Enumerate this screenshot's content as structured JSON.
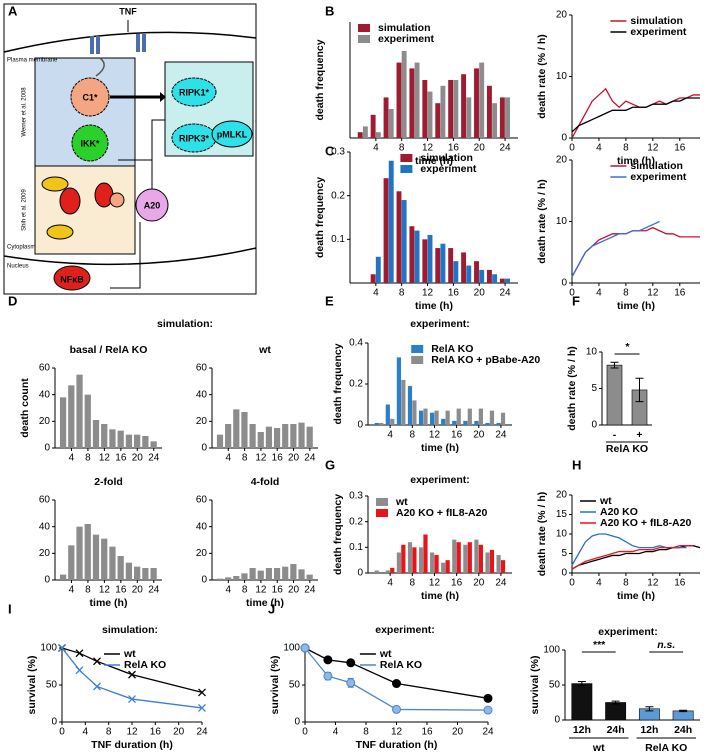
{
  "diagram": {
    "panel": "A",
    "tnf": "TNF",
    "membrane": "Plasma membrane",
    "ref1": "Werner et al. 2008",
    "ref2": "Shih et al. 2009",
    "c1": "C1*",
    "ikk": "IKK*",
    "ripk1": "RIPK1*",
    "ripk3": "RIPK3*",
    "pmlkl": "pMLKL",
    "a20": "A20",
    "cytoplasm": "Cytoplasm",
    "nucleus": "Nucleus",
    "nfkb": "NFκB"
  },
  "chart_data": [
    {
      "panel": "B",
      "type": "bar",
      "xlabel": "time (h)",
      "ylabel": "death frequency",
      "x": [
        2,
        4,
        6,
        8,
        10,
        12,
        14,
        16,
        18,
        20,
        22,
        24
      ],
      "xlim": [
        0,
        26
      ],
      "xticks": [
        4,
        8,
        12,
        16,
        20,
        24
      ],
      "ylim": [
        0,
        0.2
      ],
      "legend": "upper left",
      "series": [
        {
          "name": "simulation",
          "color": "#9e1b32",
          "values": [
            0.01,
            0.04,
            0.07,
            0.13,
            0.12,
            0.1,
            0.06,
            0.1,
            0.11,
            0.12,
            0.09,
            0.07
          ]
        },
        {
          "name": "experiment",
          "color": "#8c8c8c",
          "values": [
            0.02,
            0.01,
            0.05,
            0.15,
            0.13,
            0.08,
            0.09,
            0.1,
            0.07,
            0.13,
            0.06,
            0.07
          ]
        }
      ]
    },
    {
      "type": "line",
      "xlabel": "time (h)",
      "ylabel": "death rate (% / h)",
      "x": [
        0,
        1,
        2,
        3,
        4,
        5,
        6,
        7,
        8,
        9,
        10,
        11,
        12,
        13,
        14,
        15,
        16,
        17,
        18,
        19
      ],
      "xlim": [
        0,
        19
      ],
      "xticks": [
        0,
        4,
        8,
        12,
        16
      ],
      "ylim": [
        0,
        20
      ],
      "yticks": [
        0,
        10,
        20
      ],
      "legend": "upper right",
      "series": [
        {
          "name": "simulation",
          "color": "#c8102e",
          "values": [
            0,
            2,
            4,
            6,
            7,
            8,
            6,
            5,
            6,
            5.5,
            5,
            5,
            5.5,
            6,
            5.5,
            6,
            6.5,
            6.5,
            7,
            7
          ]
        },
        {
          "name": "experiment",
          "color": "#000000",
          "values": [
            1,
            2,
            2.5,
            3,
            3.5,
            4,
            4.5,
            4.5,
            4.5,
            5,
            5,
            5,
            5.5,
            5.5,
            5.5,
            6,
            6,
            6.5,
            6.5,
            6.5
          ]
        }
      ]
    },
    {
      "panel": "C",
      "type": "bar",
      "xlabel": "time (h)",
      "ylabel": "death frequency",
      "x": [
        2,
        4,
        6,
        8,
        10,
        12,
        14,
        16,
        18,
        20,
        22,
        24
      ],
      "xlim": [
        0,
        26
      ],
      "xticks": [
        4,
        8,
        12,
        16,
        20,
        24
      ],
      "ylim": [
        0,
        0.3
      ],
      "yticks": [
        0.1,
        0.2,
        0.3
      ],
      "legend": "upper right",
      "series": [
        {
          "name": "simulation",
          "color": "#9e1b32",
          "values": [
            0,
            0.02,
            0.24,
            0.21,
            0.13,
            0.1,
            0.08,
            0.08,
            0.07,
            0.05,
            0.03,
            0.01
          ]
        },
        {
          "name": "experiment",
          "color": "#1f74c4",
          "values": [
            0,
            0.06,
            0.28,
            0.19,
            0.12,
            0.11,
            0.09,
            0.05,
            0.04,
            0.03,
            0.02,
            0.01
          ]
        }
      ]
    },
    {
      "type": "line",
      "xlabel": "time (h)",
      "ylabel": "death rate (% / h)",
      "x": [
        0,
        1,
        2,
        3,
        4,
        5,
        6,
        7,
        8,
        9,
        10,
        11,
        12,
        13,
        14,
        15,
        16,
        17,
        18,
        19
      ],
      "xlim": [
        0,
        19
      ],
      "xticks": [
        0,
        4,
        8,
        12,
        16
      ],
      "ylim": [
        0,
        20
      ],
      "yticks": [
        0,
        10,
        20
      ],
      "legend": "upper right",
      "series": [
        {
          "name": "simulation",
          "color": "#c8102e",
          "values": [
            1,
            3,
            5,
            6,
            7,
            7.5,
            8,
            8,
            8,
            8.5,
            8.5,
            8.5,
            9,
            8.5,
            8,
            8,
            7.5,
            7.5,
            7.5,
            7.5
          ]
        },
        {
          "name": "experiment",
          "color": "#3a6fd0",
          "values": [
            1,
            3,
            5,
            6,
            6.5,
            7,
            7.5,
            8,
            8,
            8.5,
            8.5,
            9,
            9.5,
            10,
            null,
            null,
            null,
            null,
            null,
            null
          ]
        }
      ]
    },
    {
      "panel": "D",
      "heading": "simulation:",
      "title": "basal / RelA KO",
      "type": "bar",
      "ylabel": "death count",
      "x": [
        2,
        4,
        6,
        8,
        10,
        12,
        14,
        16,
        18,
        20,
        22,
        24
      ],
      "xlim": [
        0,
        26
      ],
      "xticks": [
        4,
        8,
        12,
        16,
        20,
        24
      ],
      "ylim": [
        0,
        60
      ],
      "yticks": [
        0,
        20,
        40,
        60
      ],
      "color": "#8c8c8c",
      "values": [
        38,
        47,
        55,
        40,
        21,
        18,
        14,
        13,
        10,
        10,
        9,
        5
      ]
    },
    {
      "title": "wt",
      "type": "bar",
      "x": [
        2,
        4,
        6,
        8,
        10,
        12,
        14,
        16,
        18,
        20,
        22,
        24
      ],
      "xlim": [
        0,
        26
      ],
      "xticks": [
        4,
        8,
        12,
        16,
        20,
        24
      ],
      "ylim": [
        0,
        60
      ],
      "yticks": [
        0,
        20,
        40,
        60
      ],
      "color": "#8c8c8c",
      "values": [
        10,
        18,
        29,
        27,
        18,
        12,
        16,
        15,
        18,
        18,
        19,
        16
      ]
    },
    {
      "title": "2-fold",
      "type": "bar",
      "xlabel": "time (h)",
      "x": [
        2,
        4,
        6,
        8,
        10,
        12,
        14,
        16,
        18,
        20,
        22,
        24
      ],
      "xlim": [
        0,
        26
      ],
      "xticks": [
        4,
        8,
        12,
        16,
        20,
        24
      ],
      "ylim": [
        0,
        60
      ],
      "yticks": [
        0,
        20,
        40,
        60
      ],
      "color": "#8c8c8c",
      "values": [
        4,
        26,
        40,
        42,
        34,
        31,
        25,
        18,
        13,
        10,
        9,
        9
      ]
    },
    {
      "title": "4-fold",
      "type": "bar",
      "xlabel": "time (h)",
      "x": [
        2,
        4,
        6,
        8,
        10,
        12,
        14,
        16,
        18,
        20,
        22,
        24
      ],
      "xlim": [
        0,
        26
      ],
      "xticks": [
        4,
        8,
        12,
        16,
        20,
        24
      ],
      "ylim": [
        0,
        60
      ],
      "yticks": [
        0,
        20,
        40,
        60
      ],
      "color": "#8c8c8c",
      "values": [
        1,
        2,
        3,
        5,
        9,
        7,
        9,
        9,
        10,
        12,
        8,
        4
      ]
    },
    {
      "panel": "E",
      "heading": "experiment:",
      "type": "bar",
      "xlabel": "time (h)",
      "ylabel": "death frequency",
      "x": [
        2,
        4,
        6,
        8,
        10,
        12,
        14,
        16,
        18,
        20,
        22,
        24
      ],
      "xlim": [
        0,
        26
      ],
      "xticks": [
        4,
        8,
        12,
        16,
        20,
        24
      ],
      "ylim": [
        0,
        0.4
      ],
      "yticks": [
        0,
        0.2,
        0.4
      ],
      "legend": "upper right",
      "series": [
        {
          "name": "RelA KO",
          "color": "#2a7fc9",
          "values": [
            0.01,
            0.1,
            0.33,
            0.19,
            0.07,
            0.06,
            0.03,
            0.02,
            0.02,
            0.02,
            0.01,
            0.01
          ]
        },
        {
          "name": "RelA KO + pBabe-A20",
          "color": "#8c8c8c",
          "values": [
            0.01,
            0.03,
            0.22,
            0.12,
            0.08,
            0.07,
            0.07,
            0.08,
            0.08,
            0.08,
            0.07,
            0.06
          ]
        }
      ]
    },
    {
      "panel": "F",
      "type": "bar",
      "xlabel": "RelA KO",
      "ylabel": "death rate (% / h)",
      "categories": [
        "-",
        "+"
      ],
      "ylim": [
        0,
        10
      ],
      "yticks": [
        0,
        5,
        10
      ],
      "color": "#8c8c8c",
      "values": [
        8.2,
        4.8
      ],
      "errors": [
        0.4,
        1.6
      ],
      "annotations": [
        "*"
      ]
    },
    {
      "panel": "G",
      "heading": "experiment:",
      "type": "bar",
      "xlabel": "time (h)",
      "ylabel": "death frequency",
      "x": [
        2,
        4,
        6,
        8,
        10,
        12,
        14,
        16,
        18,
        20,
        22,
        24
      ],
      "xlim": [
        0,
        26
      ],
      "xticks": [
        4,
        8,
        12,
        16,
        20,
        24
      ],
      "ylim": [
        0,
        0.3
      ],
      "yticks": [
        0,
        0.1,
        0.2,
        0.3
      ],
      "legend": "upper left",
      "series": [
        {
          "name": "wt",
          "color": "#8c8c8c",
          "values": [
            0.01,
            0.01,
            0.08,
            0.12,
            0.1,
            0.08,
            0.04,
            0.13,
            0.11,
            0.13,
            0.08,
            0.07
          ]
        },
        {
          "name": "A20 KO + fIL8-A20",
          "color": "#e8141b",
          "values": [
            0,
            0.02,
            0.11,
            0.1,
            0.15,
            0.07,
            0.05,
            0.12,
            0.12,
            0.11,
            0.09,
            0.05
          ]
        }
      ]
    },
    {
      "panel": "H",
      "type": "line",
      "xlabel": "time (h)",
      "ylabel": "death rate (% / h)",
      "x": [
        0,
        1,
        2,
        3,
        4,
        5,
        6,
        7,
        8,
        9,
        10,
        11,
        12,
        13,
        14,
        15,
        16,
        17,
        18,
        19
      ],
      "xlim": [
        0,
        19
      ],
      "xticks": [
        0,
        4,
        8,
        12,
        16
      ],
      "ylim": [
        0,
        20
      ],
      "yticks": [
        0,
        5,
        10,
        15,
        20
      ],
      "legend": "upper left",
      "series": [
        {
          "name": "wt",
          "color": "#000000",
          "values": [
            1,
            2,
            2.5,
            3,
            3.5,
            4,
            4.5,
            4.5,
            5,
            5,
            5,
            5.5,
            5.5,
            6,
            6,
            6.5,
            6.5,
            7,
            7,
            6.5
          ]
        },
        {
          "name": "A20 KO",
          "color": "#2a6fd0",
          "values": [
            2,
            5,
            8,
            9.5,
            10,
            10,
            9.5,
            9,
            8,
            7,
            6.5,
            6.5,
            6.5,
            7,
            6.5,
            6.5,
            6.5,
            6.5,
            null,
            null
          ]
        },
        {
          "name": "A20 KO + fIL8-A20",
          "color": "#e8141b",
          "values": [
            1,
            2,
            3,
            3.5,
            4,
            4.5,
            5,
            5.5,
            5.5,
            5.5,
            6,
            6,
            6,
            6.5,
            6.5,
            6.5,
            7,
            7,
            7,
            null
          ]
        }
      ]
    },
    {
      "panel": "I",
      "heading": "simulation:",
      "type": "line",
      "marker": "x",
      "xlabel": "TNF duration (h)",
      "ylabel": "survival (%)",
      "x": [
        0,
        3,
        6,
        12,
        24
      ],
      "xlim": [
        0,
        24
      ],
      "xticks": [
        0,
        4,
        8,
        12,
        16,
        20,
        24
      ],
      "ylim": [
        0,
        100
      ],
      "yticks": [
        0,
        50,
        100
      ],
      "legend": "upper right",
      "series": [
        {
          "name": "wt",
          "color": "#000000",
          "values": [
            100,
            93,
            82,
            64,
            40
          ]
        },
        {
          "name": "RelA KO",
          "color": "#3a7fd5",
          "values": [
            100,
            70,
            48,
            31,
            19
          ]
        }
      ]
    },
    {
      "panel": "J",
      "heading": "experiment:",
      "type": "line",
      "marker": "o",
      "xlabel": "TNF duration (h)",
      "ylabel": "survival (%)",
      "x": [
        0,
        3,
        6,
        12,
        24
      ],
      "xlim": [
        0,
        24
      ],
      "xticks": [
        0,
        4,
        8,
        12,
        16,
        20,
        24
      ],
      "ylim": [
        0,
        100
      ],
      "yticks": [
        0,
        50,
        100
      ],
      "legend": "upper right",
      "series": [
        {
          "name": "wt",
          "color": "#000000",
          "values": [
            100,
            84,
            80,
            52,
            32
          ],
          "errors": [
            0,
            3,
            3,
            3,
            4
          ]
        },
        {
          "name": "RelA KO",
          "color": "#4a86c8",
          "values": [
            100,
            62,
            53,
            17,
            16
          ],
          "errors": [
            0,
            5,
            6,
            4,
            3
          ]
        }
      ]
    },
    {
      "heading": "experiment:",
      "type": "bar",
      "ylabel": "survival (%)",
      "categories": [
        "12h",
        "24h",
        "12h",
        "24h"
      ],
      "groups": [
        "wt",
        "RelA KO"
      ],
      "ylim": [
        0,
        100
      ],
      "yticks": [
        0,
        50,
        100
      ],
      "colors": [
        "#111111",
        "#111111",
        "#5b9bd5",
        "#5b9bd5"
      ],
      "values": [
        52,
        25,
        16,
        13
      ],
      "errors": [
        3,
        2,
        3,
        1
      ],
      "annotations": [
        "***",
        "n.s."
      ]
    }
  ]
}
